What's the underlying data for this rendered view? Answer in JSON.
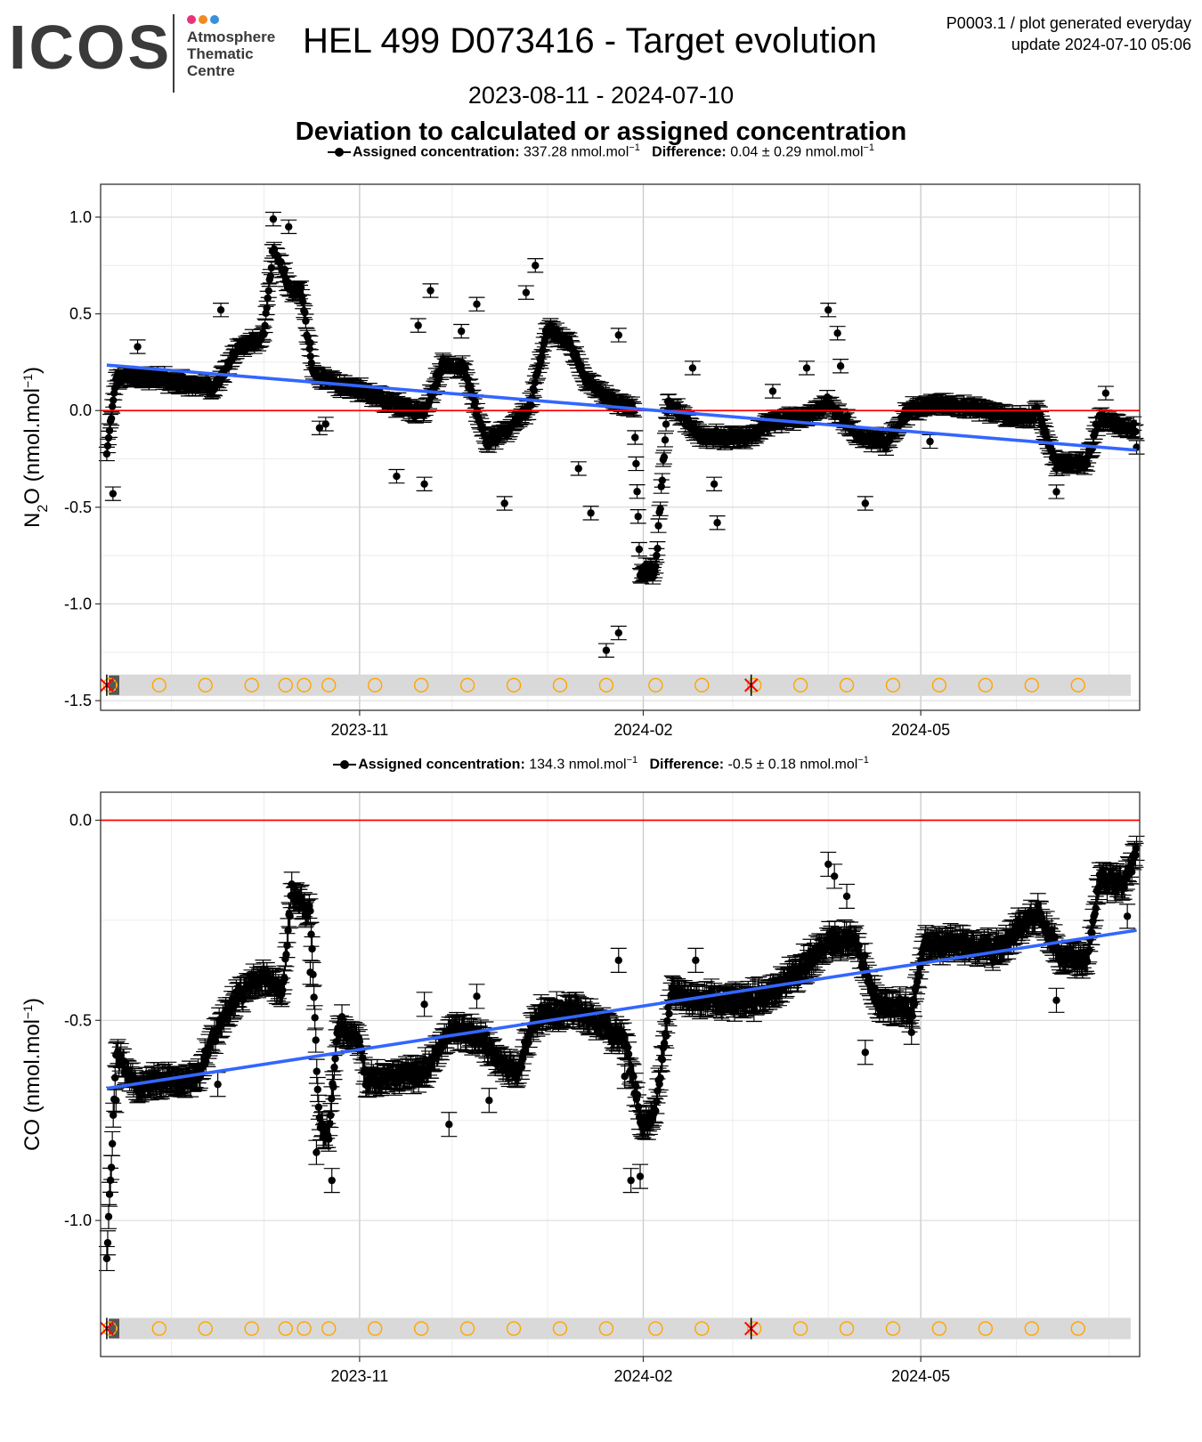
{
  "header": {
    "logo_word": "ICOS",
    "logo_line1": "Atmosphere",
    "logo_line2": "Thematic",
    "logo_line3": "Centre",
    "logo_dot_colors": [
      "#e8337a",
      "#f08a24",
      "#3b8fd9"
    ],
    "title": "HEL 499 D073416 - Target evolution",
    "gen_line1": "P0003.1 / plot generated everyday",
    "gen_line2": "update  2024-07-10 05:06",
    "date_range": "2023-08-11 - 2024-07-10",
    "subtitle": "Deviation to calculated or assigned concentration"
  },
  "colors": {
    "points": "#000000",
    "trend": "#3366ff",
    "zero_line": "#ff0000",
    "status_band": "#d9d9d9",
    "status_ok": "#ffa500",
    "status_fail": "#ff0000"
  },
  "chart_data": [
    {
      "type": "scatter",
      "species": "N2O",
      "legend_assigned_label": "Assigned concentration:",
      "legend_assigned_value": "337.28 nmol.mol",
      "legend_diff_label": "Difference:",
      "legend_diff_value": "0.04 ± 0.29 nmol.mol",
      "legend_exp": "−1",
      "ylabel_main": "N",
      "ylabel_sub": "2",
      "ylabel_rest": "O (nmol.mol",
      "ylabel_exp": "−1",
      "ylabel_close": ")",
      "ylim": [
        -1.55,
        1.17
      ],
      "yticks": [
        1.0,
        0.5,
        0.0,
        -0.5,
        -1.0,
        -1.5
      ],
      "ytick_labels": [
        "1.0",
        "0.5",
        "0.0",
        "-0.5",
        "-1.0",
        "-1.5"
      ],
      "xlim": [
        "2023-08-09",
        "2024-07-11"
      ],
      "xticks": [
        "2023-11-01",
        "2024-02-01",
        "2024-05-01"
      ],
      "xtick_labels": [
        "2023-11",
        "2024-02",
        "2024-05"
      ],
      "grid": true,
      "reference_line_y": 0.0,
      "trend": {
        "x": [
          "2023-08-11",
          "2024-07-10"
        ],
        "y": [
          0.235,
          -0.205
        ]
      },
      "status_y": -1.42,
      "anchors": [
        [
          "2023-08-11",
          -0.22
        ],
        [
          "2023-08-14",
          0.18
        ],
        [
          "2023-08-25",
          0.17
        ],
        [
          "2023-09-05",
          0.14
        ],
        [
          "2023-09-15",
          0.12
        ],
        [
          "2023-09-23",
          0.33
        ],
        [
          "2023-10-01",
          0.38
        ],
        [
          "2023-10-04",
          0.85
        ],
        [
          "2023-10-09",
          0.63
        ],
        [
          "2023-10-13",
          0.62
        ],
        [
          "2023-10-17",
          0.18
        ],
        [
          "2023-10-24",
          0.15
        ],
        [
          "2023-11-01",
          0.11
        ],
        [
          "2023-11-12",
          0.03
        ],
        [
          "2023-11-22",
          -0.01
        ],
        [
          "2023-11-28",
          0.25
        ],
        [
          "2023-12-05",
          0.22
        ],
        [
          "2023-12-12",
          -0.16
        ],
        [
          "2023-12-20",
          -0.09
        ],
        [
          "2023-12-26",
          0.02
        ],
        [
          "2024-01-01",
          0.43
        ],
        [
          "2024-01-08",
          0.35
        ],
        [
          "2024-01-14",
          0.15
        ],
        [
          "2024-01-22",
          0.05
        ],
        [
          "2024-01-29",
          0.0
        ],
        [
          "2024-01-31",
          -0.84
        ],
        [
          "2024-02-05",
          -0.82
        ],
        [
          "2024-02-09",
          0.05
        ],
        [
          "2024-02-20",
          -0.13
        ],
        [
          "2024-03-05",
          -0.14
        ],
        [
          "2024-03-15",
          -0.05
        ],
        [
          "2024-03-25",
          -0.03
        ],
        [
          "2024-04-01",
          0.04
        ],
        [
          "2024-04-10",
          -0.12
        ],
        [
          "2024-04-20",
          -0.17
        ],
        [
          "2024-04-26",
          -0.01
        ],
        [
          "2024-05-05",
          0.04
        ],
        [
          "2024-05-20",
          0.01
        ],
        [
          "2024-06-01",
          -0.04
        ],
        [
          "2024-06-08",
          -0.01
        ],
        [
          "2024-06-14",
          -0.28
        ],
        [
          "2024-06-24",
          -0.26
        ],
        [
          "2024-06-28",
          -0.04
        ],
        [
          "2024-07-10",
          -0.1
        ]
      ],
      "outliers": [
        [
          "2023-08-13",
          -0.43
        ],
        [
          "2023-08-21",
          0.33
        ],
        [
          "2023-09-17",
          0.52
        ],
        [
          "2023-10-04",
          0.99
        ],
        [
          "2023-10-09",
          0.95
        ],
        [
          "2023-10-16",
          0.35
        ],
        [
          "2023-10-19",
          -0.09
        ],
        [
          "2023-10-21",
          -0.07
        ],
        [
          "2023-11-13",
          -0.34
        ],
        [
          "2023-11-20",
          0.44
        ],
        [
          "2023-11-22",
          -0.38
        ],
        [
          "2023-11-24",
          0.62
        ],
        [
          "2023-12-04",
          0.41
        ],
        [
          "2023-12-09",
          0.55
        ],
        [
          "2023-12-18",
          -0.48
        ],
        [
          "2023-12-25",
          0.61
        ],
        [
          "2023-12-28",
          0.75
        ],
        [
          "2024-01-11",
          -0.3
        ],
        [
          "2024-01-15",
          -0.53
        ],
        [
          "2024-01-20",
          -1.24
        ],
        [
          "2024-01-24",
          -1.15
        ],
        [
          "2024-01-24",
          0.39
        ],
        [
          "2024-02-17",
          0.22
        ],
        [
          "2024-02-24",
          -0.38
        ],
        [
          "2024-02-25",
          -0.58
        ],
        [
          "2024-03-14",
          0.1
        ],
        [
          "2024-03-25",
          0.22
        ],
        [
          "2024-04-01",
          0.52
        ],
        [
          "2024-04-04",
          0.4
        ],
        [
          "2024-04-05",
          0.23
        ],
        [
          "2024-04-13",
          -0.48
        ],
        [
          "2024-05-04",
          -0.16
        ],
        [
          "2024-06-14",
          -0.42
        ],
        [
          "2024-06-30",
          0.09
        ],
        [
          "2024-07-10",
          -0.19
        ]
      ],
      "status_ok_dates": [
        "2023-08-12",
        "2023-08-28",
        "2023-09-12",
        "2023-09-27",
        "2023-10-08",
        "2023-10-14",
        "2023-10-22",
        "2023-11-06",
        "2023-11-21",
        "2023-12-06",
        "2023-12-21",
        "2024-01-05",
        "2024-01-20",
        "2024-02-05",
        "2024-02-20",
        "2024-03-08",
        "2024-03-23",
        "2024-04-07",
        "2024-04-22",
        "2024-05-07",
        "2024-05-22",
        "2024-06-06",
        "2024-06-21"
      ],
      "status_fail_dates": [
        "2023-08-11",
        "2024-03-07"
      ]
    },
    {
      "type": "scatter",
      "species": "CO",
      "legend_assigned_label": "Assigned concentration:",
      "legend_assigned_value": "134.3 nmol.mol",
      "legend_diff_label": "Difference:",
      "legend_diff_value": "-0.5 ± 0.18 nmol.mol",
      "legend_exp": "−1",
      "ylabel_main": "CO (nmol.mol",
      "ylabel_sub": "",
      "ylabel_rest": "",
      "ylabel_exp": "−1",
      "ylabel_close": ")",
      "ylim": [
        -1.34,
        0.07
      ],
      "yticks": [
        0.0,
        -0.5,
        -1.0
      ],
      "ytick_labels": [
        "0.0",
        "-0.5",
        "-1.0"
      ],
      "xlim": [
        "2023-08-09",
        "2024-07-11"
      ],
      "xticks": [
        "2023-11-01",
        "2024-02-01",
        "2024-05-01"
      ],
      "xtick_labels": [
        "2023-11",
        "2024-02",
        "2024-05"
      ],
      "grid": true,
      "reference_line_y": 0.0,
      "trend": {
        "x": [
          "2023-08-11",
          "2024-07-10"
        ],
        "y": [
          -0.67,
          -0.275
        ]
      },
      "status_y": -1.27,
      "anchors": [
        [
          "2023-08-11",
          -1.1
        ],
        [
          "2023-08-14",
          -0.59
        ],
        [
          "2023-08-20",
          -0.66
        ],
        [
          "2023-09-01",
          -0.65
        ],
        [
          "2023-09-10",
          -0.64
        ],
        [
          "2023-09-14",
          -0.55
        ],
        [
          "2023-09-22",
          -0.44
        ],
        [
          "2023-10-01",
          -0.39
        ],
        [
          "2023-10-07",
          -0.43
        ],
        [
          "2023-10-10",
          -0.18
        ],
        [
          "2023-10-16",
          -0.23
        ],
        [
          "2023-10-19",
          -0.77
        ],
        [
          "2023-10-22",
          -0.79
        ],
        [
          "2023-10-25",
          -0.52
        ],
        [
          "2023-11-01",
          -0.55
        ],
        [
          "2023-11-03",
          -0.65
        ],
        [
          "2023-11-12",
          -0.64
        ],
        [
          "2023-11-22",
          -0.63
        ],
        [
          "2023-12-01",
          -0.52
        ],
        [
          "2023-12-10",
          -0.54
        ],
        [
          "2023-12-15",
          -0.59
        ],
        [
          "2023-12-22",
          -0.63
        ],
        [
          "2023-12-28",
          -0.5
        ],
        [
          "2024-01-08",
          -0.47
        ],
        [
          "2024-01-18",
          -0.51
        ],
        [
          "2024-01-26",
          -0.55
        ],
        [
          "2024-02-01",
          -0.77
        ],
        [
          "2024-02-05",
          -0.72
        ],
        [
          "2024-02-10",
          -0.43
        ],
        [
          "2024-02-20",
          -0.45
        ],
        [
          "2024-03-01",
          -0.45
        ],
        [
          "2024-03-12",
          -0.44
        ],
        [
          "2024-03-25",
          -0.36
        ],
        [
          "2024-04-01",
          -0.3
        ],
        [
          "2024-04-10",
          -0.3
        ],
        [
          "2024-04-17",
          -0.46
        ],
        [
          "2024-04-28",
          -0.48
        ],
        [
          "2024-05-02",
          -0.31
        ],
        [
          "2024-05-15",
          -0.31
        ],
        [
          "2024-05-25",
          -0.33
        ],
        [
          "2024-06-02",
          -0.27
        ],
        [
          "2024-06-08",
          -0.23
        ],
        [
          "2024-06-15",
          -0.34
        ],
        [
          "2024-06-24",
          -0.35
        ],
        [
          "2024-06-28",
          -0.15
        ],
        [
          "2024-07-06",
          -0.16
        ],
        [
          "2024-07-10",
          -0.08
        ]
      ],
      "outliers": [
        [
          "2023-08-14",
          -0.7
        ],
        [
          "2023-09-16",
          -0.66
        ],
        [
          "2023-10-16",
          -0.38
        ],
        [
          "2023-10-18",
          -0.83
        ],
        [
          "2023-10-23",
          -0.9
        ],
        [
          "2023-11-22",
          -0.46
        ],
        [
          "2023-11-30",
          -0.76
        ],
        [
          "2023-12-09",
          -0.44
        ],
        [
          "2023-12-13",
          -0.7
        ],
        [
          "2024-01-11",
          -0.47
        ],
        [
          "2024-01-24",
          -0.35
        ],
        [
          "2024-01-26",
          -0.64
        ],
        [
          "2024-01-28",
          -0.9
        ],
        [
          "2024-01-31",
          -0.89
        ],
        [
          "2024-02-18",
          -0.35
        ],
        [
          "2024-04-01",
          -0.11
        ],
        [
          "2024-04-03",
          -0.14
        ],
        [
          "2024-04-07",
          -0.19
        ],
        [
          "2024-04-13",
          -0.58
        ],
        [
          "2024-04-28",
          -0.53
        ],
        [
          "2024-05-08",
          -0.3
        ],
        [
          "2024-06-14",
          -0.45
        ],
        [
          "2024-07-07",
          -0.24
        ],
        [
          "2024-07-10",
          -0.07
        ]
      ],
      "status_ok_dates": [
        "2023-08-12",
        "2023-08-28",
        "2023-09-12",
        "2023-09-27",
        "2023-10-08",
        "2023-10-14",
        "2023-10-22",
        "2023-11-06",
        "2023-11-21",
        "2023-12-06",
        "2023-12-21",
        "2024-01-05",
        "2024-01-20",
        "2024-02-05",
        "2024-02-20",
        "2024-03-08",
        "2024-03-23",
        "2024-04-07",
        "2024-04-22",
        "2024-05-07",
        "2024-05-22",
        "2024-06-06",
        "2024-06-21"
      ],
      "status_fail_dates": [
        "2023-08-11",
        "2024-03-07"
      ]
    }
  ]
}
